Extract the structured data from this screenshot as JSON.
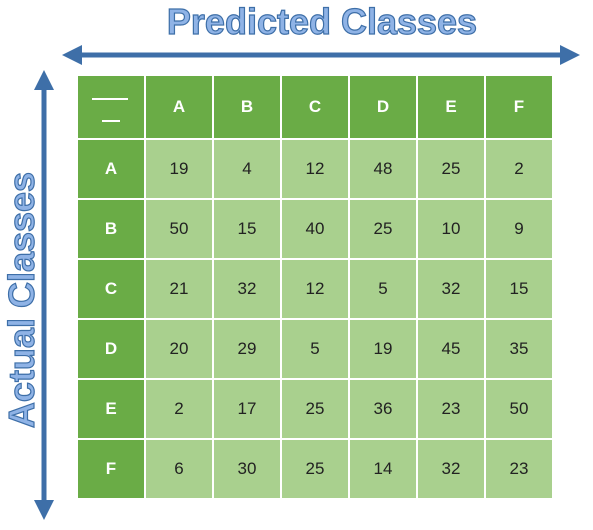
{
  "chart_data": {
    "type": "table",
    "title": "",
    "xlabel": "Predicted Classes",
    "ylabel": "Actual Classes",
    "corner": "",
    "columns": [
      "A",
      "B",
      "C",
      "D",
      "E",
      "F"
    ],
    "rows": [
      "A",
      "B",
      "C",
      "D",
      "E",
      "F"
    ],
    "values": [
      [
        19,
        4,
        12,
        48,
        25,
        2
      ],
      [
        50,
        15,
        40,
        25,
        10,
        9
      ],
      [
        21,
        32,
        12,
        5,
        32,
        15
      ],
      [
        20,
        29,
        5,
        19,
        45,
        35
      ],
      [
        2,
        17,
        25,
        36,
        23,
        50
      ],
      [
        6,
        30,
        25,
        14,
        32,
        23
      ]
    ]
  },
  "colors": {
    "header": "#6aac46",
    "cell": "#a9d08e",
    "axis_arrow": "#3e6fa8",
    "axis_label_fill": "#8fb3e6"
  }
}
